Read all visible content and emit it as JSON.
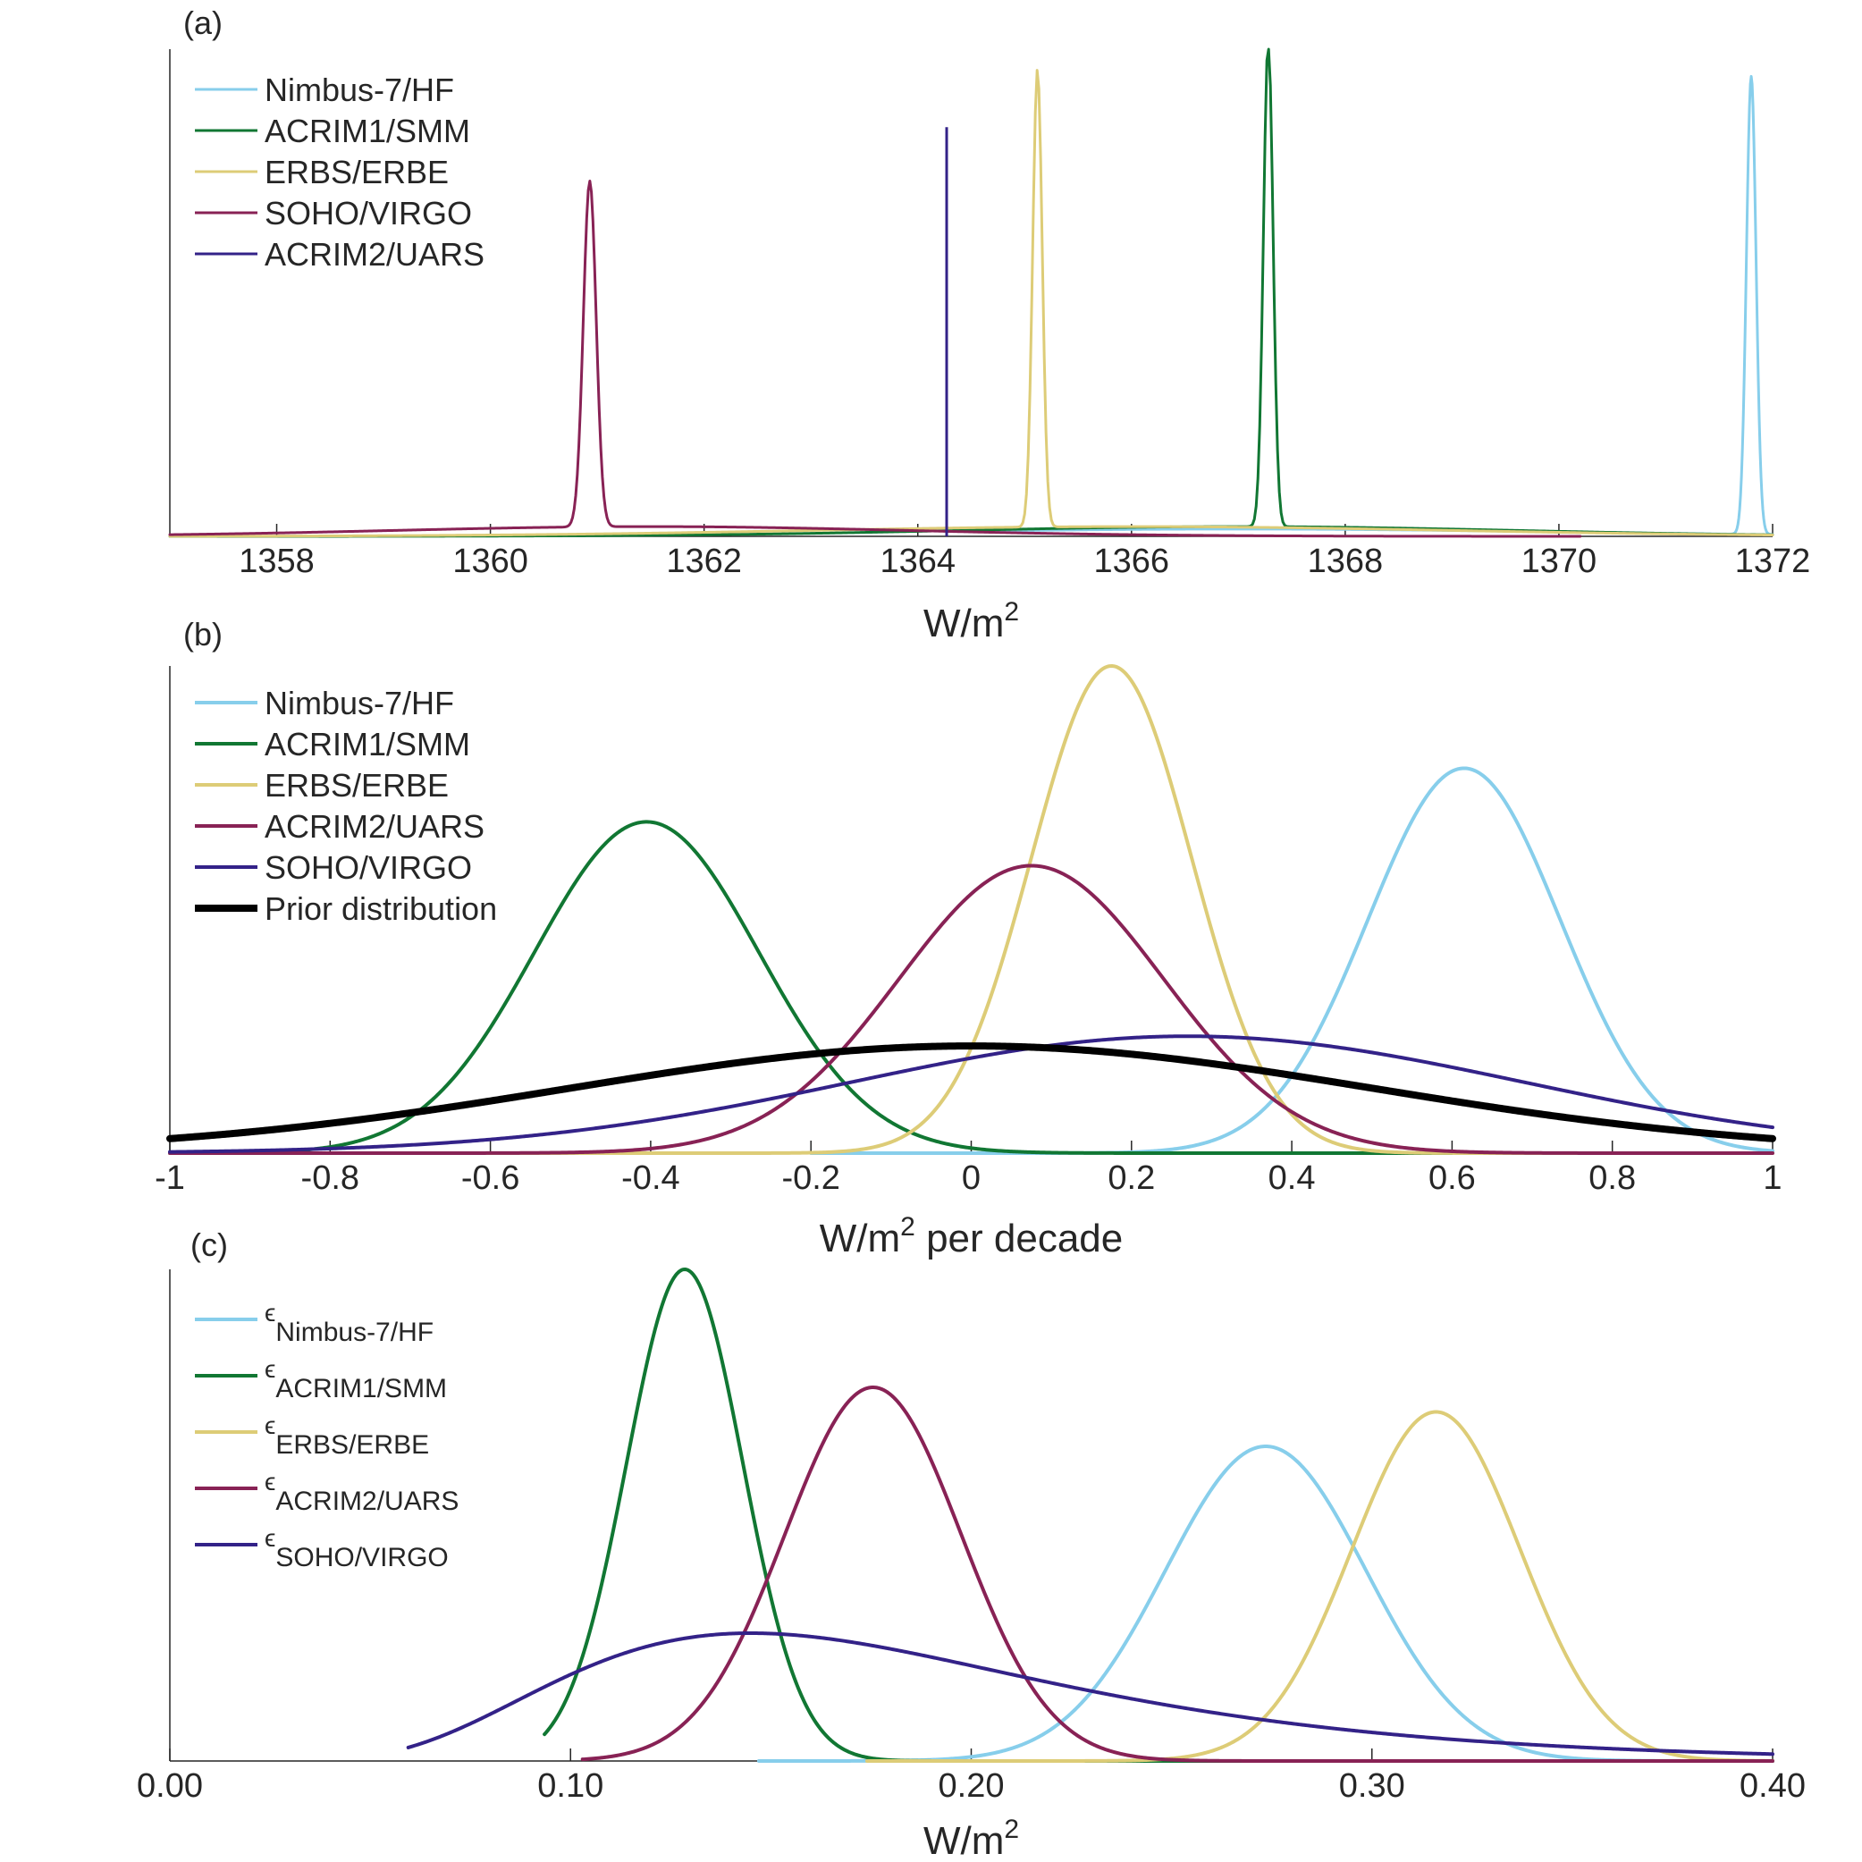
{
  "colors": {
    "nimbus": "#87ceeb",
    "acrim1": "#117733",
    "erbs": "#ddcc77",
    "acrim2": "#882255",
    "soho": "#332288",
    "prior": "#000000"
  },
  "chart_data": [
    {
      "panel_label": "(a)",
      "type": "line",
      "xlabel": "W/m",
      "xlabel_sup": "2",
      "xlabel_suffix": "",
      "xlim": [
        1357,
        1372
      ],
      "ylim": [
        0,
        1
      ],
      "xticks": [
        1358,
        1360,
        1362,
        1364,
        1366,
        1368,
        1370,
        1372
      ],
      "xtick_labels": [
        "1358",
        "1360",
        "1362",
        "1364",
        "1366",
        "1368",
        "1370",
        "1372"
      ],
      "legend_placement": "top-left",
      "series": [
        {
          "name": "Nimbus-7/HF",
          "color_key": "nimbus",
          "stroke_width": 3,
          "peaks": [
            {
              "mu": 1371.8,
              "sigma": 0.045,
              "amp": 0.94
            },
            {
              "mu": 1367.0,
              "sigma": 3.0,
              "amp": 0.015
            }
          ],
          "x_range": [
            1364.5,
            1372
          ]
        },
        {
          "name": "ACRIM1/SMM",
          "color_key": "acrim1",
          "stroke_width": 3,
          "peaks": [
            {
              "mu": 1367.28,
              "sigma": 0.045,
              "amp": 1.0
            },
            {
              "mu": 1367.0,
              "sigma": 2.6,
              "amp": 0.02
            }
          ],
          "x_range": [
            1357,
            1372
          ]
        },
        {
          "name": "ERBS/ERBE",
          "color_key": "erbs",
          "stroke_width": 3,
          "peaks": [
            {
              "mu": 1365.12,
              "sigma": 0.045,
              "amp": 0.94
            },
            {
              "mu": 1366.0,
              "sigma": 3.0,
              "amp": 0.02
            }
          ],
          "x_range": [
            1357,
            1372
          ]
        },
        {
          "name": "SOHO/VIRGO",
          "color_key": "acrim2",
          "stroke_width": 3,
          "peaks": [
            {
              "mu": 1360.93,
              "sigma": 0.06,
              "amp": 0.71
            },
            {
              "mu": 1361.5,
              "sigma": 2.4,
              "amp": 0.02
            }
          ],
          "x_range": [
            1357,
            1370.2
          ]
        },
        {
          "name": "ACRIM2/UARS",
          "color_key": "soho",
          "stroke_width": 3,
          "spike": {
            "x": 1364.27,
            "height": 0.84
          }
        }
      ]
    },
    {
      "panel_label": "(b)",
      "type": "line",
      "xlabel": "W/m",
      "xlabel_sup": "2",
      "xlabel_suffix": " per decade",
      "xlim": [
        -1,
        1
      ],
      "ylim": [
        0,
        1
      ],
      "xticks": [
        -1,
        -0.8,
        -0.6,
        -0.4,
        -0.2,
        0,
        0.2,
        0.4,
        0.6,
        0.8,
        1
      ],
      "xtick_labels": [
        "-1",
        "-0.8",
        "-0.6",
        "-0.4",
        "-0.2",
        "0",
        "0.2",
        "0.4",
        "0.6",
        "0.8",
        "1"
      ],
      "legend_placement": "top-left",
      "series": [
        {
          "name": "Nimbus-7/HF",
          "color_key": "nimbus",
          "stroke_width": 4,
          "peaks": [
            {
              "mu": 0.615,
              "sigma": 0.12,
              "amp": 0.79
            }
          ],
          "x_range": [
            -0.2,
            1
          ]
        },
        {
          "name": "ACRIM1/SMM",
          "color_key": "acrim1",
          "stroke_width": 4,
          "peaks": [
            {
              "mu": -0.405,
              "sigma": 0.14,
              "amp": 0.68
            }
          ],
          "x_range": [
            -1,
            0.6
          ]
        },
        {
          "name": "ERBS/ERBE",
          "color_key": "erbs",
          "stroke_width": 4,
          "peaks": [
            {
              "mu": 0.175,
              "sigma": 0.1,
              "amp": 1.0
            }
          ],
          "x_range": [
            -1,
            1
          ]
        },
        {
          "name": "ACRIM2/UARS",
          "color_key": "acrim2",
          "stroke_width": 4,
          "peaks": [
            {
              "mu": 0.075,
              "sigma": 0.165,
              "amp": 0.59
            }
          ],
          "x_range": [
            -1,
            1
          ]
        },
        {
          "name": "SOHO/VIRGO",
          "color_key": "soho",
          "stroke_width": 4,
          "peaks": [
            {
              "mu": 0.27,
              "sigma": 0.42,
              "amp": 0.24
            }
          ],
          "x_range": [
            -1,
            1
          ]
        },
        {
          "name": "Prior distribution",
          "color_key": "prior",
          "stroke_width": 8,
          "peaks": [
            {
              "mu": 0.0,
              "sigma": 0.5,
              "amp": 0.22
            }
          ],
          "x_range": [
            -1,
            1
          ]
        }
      ]
    },
    {
      "panel_label": "(c)",
      "type": "line",
      "xlabel": "W/m",
      "xlabel_sup": "2",
      "xlabel_suffix": "",
      "xlim": [
        0,
        0.4
      ],
      "ylim": [
        0,
        1
      ],
      "xticks": [
        0,
        0.1,
        0.2,
        0.3,
        0.4
      ],
      "xtick_labels": [
        "0.00",
        "0.10",
        "0.20",
        "0.30",
        "0.40"
      ],
      "legend_placement": "top-left",
      "legend_symbol": "ϵ",
      "series": [
        {
          "name": "Nimbus-7/HF",
          "color_key": "nimbus",
          "stroke_width": 4,
          "peaks": [
            {
              "mu": 0.2735,
              "sigma": 0.025,
              "amp": 0.64
            }
          ],
          "x_range": [
            0.147,
            0.4
          ]
        },
        {
          "name": "ACRIM1/SMM",
          "color_key": "acrim1",
          "stroke_width": 4,
          "peaks": [
            {
              "mu": 0.1285,
              "sigma": 0.0145,
              "amp": 1.0
            }
          ],
          "x_range": [
            0.0935,
            0.4
          ]
        },
        {
          "name": "ERBS/ERBE",
          "color_key": "erbs",
          "stroke_width": 4,
          "peaks": [
            {
              "mu": 0.316,
              "sigma": 0.021,
              "amp": 0.71
            }
          ],
          "x_range": [
            0.174,
            0.4
          ]
        },
        {
          "name": "ACRIM2/UARS",
          "color_key": "acrim2",
          "stroke_width": 4,
          "peaks": [
            {
              "mu": 0.1755,
              "sigma": 0.022,
              "amp": 0.76
            }
          ],
          "x_range": [
            0.103,
            0.4
          ]
        },
        {
          "name": "SOHO/VIRGO",
          "color_key": "soho",
          "stroke_width": 4,
          "lognormal": {
            "mode": 0.145,
            "s": 0.42,
            "amp": 0.26
          },
          "x_range": [
            0.0595,
            0.4
          ]
        }
      ]
    }
  ]
}
